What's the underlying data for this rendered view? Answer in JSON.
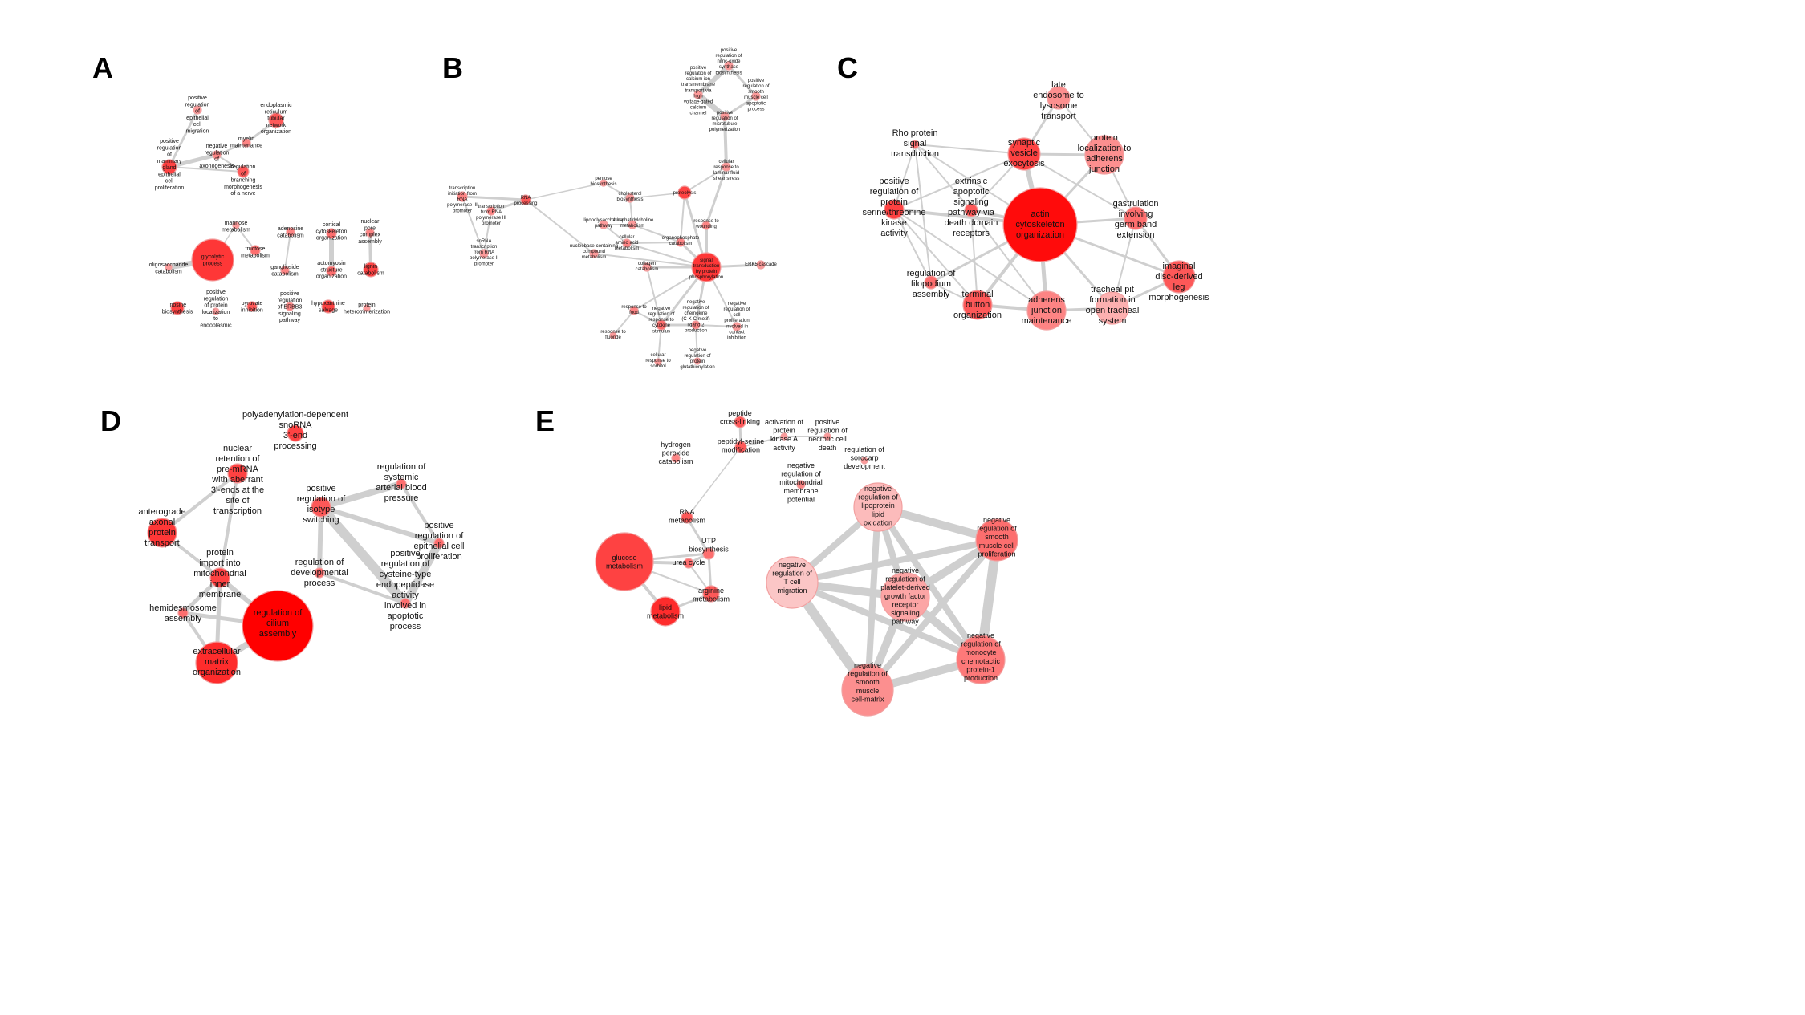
{
  "colors": {
    "background": "#ffffff",
    "edge": "#cfcfcf",
    "node_dark": "#ff0000",
    "node_light": "#fbdcdc"
  },
  "panels": [
    {
      "id": "A",
      "letter": "A",
      "nodes": [
        {
          "id": "a1",
          "label": "positive regulation of epithelial cell migration",
          "r": 5,
          "shade": 0.3
        },
        {
          "id": "a2",
          "label": "positive regulation of mammary gland epithelial cell proliferation",
          "r": 9,
          "shade": 0.7
        },
        {
          "id": "a3",
          "label": "negative regulation of axonogenesis",
          "r": 5,
          "shade": 0.4
        },
        {
          "id": "a4",
          "label": "endoplasmic reticulum tubular network organization",
          "r": 9,
          "shade": 0.6
        },
        {
          "id": "a5",
          "label": "myelin maintenance",
          "r": 5,
          "shade": 0.4
        },
        {
          "id": "a6",
          "label": "regulation of branching morphogenesis of a nerve",
          "r": 7,
          "shade": 0.6
        },
        {
          "id": "a7",
          "label": "glycolytic process",
          "r": 26,
          "shade": 0.75
        },
        {
          "id": "a8",
          "label": "oligosaccharide catabolism",
          "r": 4,
          "shade": 0.3
        },
        {
          "id": "a9",
          "label": "mannose metabolism",
          "r": 4,
          "shade": 0.3
        },
        {
          "id": "a10",
          "label": "fructose metabolism",
          "r": 6,
          "shade": 0.5
        },
        {
          "id": "a11",
          "label": "inosine biosynthesis",
          "r": 8,
          "shade": 0.7
        },
        {
          "id": "a12",
          "label": "positive regulation of protein localization to endoplasmic",
          "r": 4,
          "shade": 0.3
        },
        {
          "id": "a13",
          "label": "pyruvate inhibition",
          "r": 6,
          "shade": 0.6
        },
        {
          "id": "a14",
          "label": "adenosine catabolism",
          "r": 5,
          "shade": 0.4
        },
        {
          "id": "a15",
          "label": "ganglioside catabolism",
          "r": 5,
          "shade": 0.4
        },
        {
          "id": "a16",
          "label": "cortical cytoskeleton organization",
          "r": 6,
          "shade": 0.5
        },
        {
          "id": "a17",
          "label": "actomyosin structure organization",
          "r": 6,
          "shade": 0.5
        },
        {
          "id": "a18",
          "label": "positive regulation of ERBB3 signaling pathway",
          "r": 5,
          "shade": 0.4
        },
        {
          "id": "a19",
          "label": "hypoxanthine salvage",
          "r": 8,
          "shade": 0.7
        },
        {
          "id": "a20",
          "label": "nuclear pore complex assembly",
          "r": 5,
          "shade": 0.4
        },
        {
          "id": "a21",
          "label": "lignin catabolism",
          "r": 9,
          "shade": 0.7
        },
        {
          "id": "a22",
          "label": "protein heterotrimerization",
          "r": 4,
          "shade": 0.3
        }
      ]
    },
    {
      "id": "B",
      "letter": "B",
      "nodes": [
        {
          "id": "b1",
          "label": "positive regulation of nitric-oxide synthase biosynthesis",
          "r": 5,
          "shade": 0.3
        },
        {
          "id": "b2",
          "label": "positive regulation of calcium ion transmembrane transport via high voltage-gated calcium channel",
          "r": 5,
          "shade": 0.3
        },
        {
          "id": "b3",
          "label": "positive regulation of smooth muscle cell apoptotic process",
          "r": 5,
          "shade": 0.3
        },
        {
          "id": "b4",
          "label": "positive regulation of microtubule polymerization",
          "r": 5,
          "shade": 0.3
        },
        {
          "id": "b5",
          "label": "cellular response to laminar fluid shear stress",
          "r": 5,
          "shade": 0.3
        },
        {
          "id": "b6",
          "label": "transcription initiation from RNA polymerase III promoter",
          "r": 6,
          "shade": 0.4
        },
        {
          "id": "b7",
          "label": "RNA processing",
          "r": 6,
          "shade": 0.6
        },
        {
          "id": "b8",
          "label": "transcription from RNA polymerase III promoter",
          "r": 5,
          "shade": 0.4
        },
        {
          "id": "b9",
          "label": "snRNA transcription from RNA polymerase II promoter",
          "r": 5,
          "shade": 0.3
        },
        {
          "id": "b10",
          "label": "pentose biosynthesis",
          "r": 4,
          "shade": 0.3
        },
        {
          "id": "b11",
          "label": "cholesterol biosynthesis",
          "r": 5,
          "shade": 0.3
        },
        {
          "id": "b12",
          "label": "proteolysis",
          "r": 8,
          "shade": 0.7
        },
        {
          "id": "b13",
          "label": "lipopolysaccharide pathway",
          "r": 5,
          "shade": 0.3
        },
        {
          "id": "b14",
          "label": "phosphatidylcholine metabolism",
          "r": 5,
          "shade": 0.3
        },
        {
          "id": "b15",
          "label": "cellular amino acid metabolism",
          "r": 5,
          "shade": 0.4
        },
        {
          "id": "b16",
          "label": "nucleobase-containing compound metabolism",
          "r": 5,
          "shade": 0.3
        },
        {
          "id": "b17",
          "label": "organophosphate catabolism",
          "r": 5,
          "shade": 0.4
        },
        {
          "id": "b18",
          "label": "response to wounding",
          "r": 5,
          "shade": 0.4
        },
        {
          "id": "b19",
          "label": "collagen catabolism",
          "r": 5,
          "shade": 0.3
        },
        {
          "id": "b20",
          "label": "signal transduction by protein phosphorylation",
          "r": 18,
          "shade": 0.75
        },
        {
          "id": "b21",
          "label": "ERK5 cascade",
          "r": 5,
          "shade": 0.3
        },
        {
          "id": "b22",
          "label": "response to food",
          "r": 5,
          "shade": 0.4
        },
        {
          "id": "b23",
          "label": "negative regulation of response to cytokine stimulus",
          "r": 6,
          "shade": 0.5
        },
        {
          "id": "b24",
          "label": "negative regulation of chemokine (C-X-C motif) ligand 2 production",
          "r": 5,
          "shade": 0.4
        },
        {
          "id": "b25",
          "label": "negative regulation of cell proliferation involved in contact inhibition",
          "r": 5,
          "shade": 0.3
        },
        {
          "id": "b26",
          "label": "response to fluoride",
          "r": 4,
          "shade": 0.3
        },
        {
          "id": "b27",
          "label": "cellular response to sorbitol",
          "r": 4,
          "shade": 0.3
        },
        {
          "id": "b28",
          "label": "negative regulation of protein glutathionylation",
          "r": 4,
          "shade": 0.3
        }
      ]
    },
    {
      "id": "C",
      "letter": "C",
      "nodes": [
        {
          "id": "c1",
          "label": "late endosome to lysosome transport",
          "r": 14,
          "shade": 0.35
        },
        {
          "id": "c2",
          "label": "protein localization to adherens junction",
          "r": 24,
          "shade": 0.35
        },
        {
          "id": "c3",
          "label": "Rho protein signal transduction",
          "r": 5,
          "shade": 0.5
        },
        {
          "id": "c4",
          "label": "synaptic vesicle exocytosis",
          "r": 20,
          "shade": 0.7
        },
        {
          "id": "c5",
          "label": "positive regulation of protein serine/threonine kinase activity",
          "r": 12,
          "shade": 0.7
        },
        {
          "id": "c6",
          "label": "extrinsic apoptotic signaling pathway via death domain receptors",
          "r": 8,
          "shade": 0.6
        },
        {
          "id": "c7",
          "label": "actin cytoskeleton organization",
          "r": 46,
          "shade": 0.95
        },
        {
          "id": "c8",
          "label": "gastrulation involving germ band extension",
          "r": 14,
          "shade": 0.5
        },
        {
          "id": "c9",
          "label": "imaginal disc-derived leg morphogenesis",
          "r": 20,
          "shade": 0.6
        },
        {
          "id": "c10",
          "label": "regulation of filopodium assembly",
          "r": 8,
          "shade": 0.5
        },
        {
          "id": "c11",
          "label": "terminal button organization",
          "r": 18,
          "shade": 0.6
        },
        {
          "id": "c12",
          "label": "adherens junction maintenance",
          "r": 24,
          "shade": 0.4
        },
        {
          "id": "c13",
          "label": "tracheal pit formation in open tracheal system",
          "r": 20,
          "shade": 0.2
        }
      ]
    },
    {
      "id": "D",
      "letter": "D",
      "nodes": [
        {
          "id": "d1",
          "label": "polyadenylation-dependent snoRNA 3'-end processing",
          "r": 10,
          "shade": 0.7
        },
        {
          "id": "d2",
          "label": "nuclear retention of pre-mRNA with aberrant 3'-ends at the site of transcription",
          "r": 12,
          "shade": 0.7
        },
        {
          "id": "d3",
          "label": "anterograde axonal protein transport",
          "r": 18,
          "shade": 0.75
        },
        {
          "id": "d4",
          "label": "protein import into mitochondrial inner membrane",
          "r": 12,
          "shade": 0.7
        },
        {
          "id": "d5",
          "label": "hemidesmosome assembly",
          "r": 6,
          "shade": 0.5
        },
        {
          "id": "d6",
          "label": "regulation of cilium assembly",
          "r": 44,
          "shade": 1.0
        },
        {
          "id": "d7",
          "label": "extracellular matrix organization",
          "r": 26,
          "shade": 0.8
        },
        {
          "id": "d8",
          "label": "positive regulation of isotype switching",
          "r": 12,
          "shade": 0.6
        },
        {
          "id": "d9",
          "label": "regulation of systemic arterial blood pressure",
          "r": 6,
          "shade": 0.5
        },
        {
          "id": "d10",
          "label": "positive regulation of epithelial cell proliferation",
          "r": 6,
          "shade": 0.5
        },
        {
          "id": "d11",
          "label": "regulation of developmental process",
          "r": 6,
          "shade": 0.5
        },
        {
          "id": "d12",
          "label": "positive regulation of cysteine-type endopeptidase activity involved in apoptotic process",
          "r": 6,
          "shade": 0.5
        }
      ]
    },
    {
      "id": "E",
      "letter": "E",
      "nodes": [
        {
          "id": "e1",
          "label": "peptide cross-linking",
          "r": 7,
          "shade": 0.6
        },
        {
          "id": "e2",
          "label": "peptidyl-serine modification",
          "r": 7,
          "shade": 0.6
        },
        {
          "id": "e3",
          "label": "activation of protein kinase A activity",
          "r": 4,
          "shade": 0.3
        },
        {
          "id": "e4",
          "label": "positive regulation of necrotic cell death",
          "r": 4,
          "shade": 0.3
        },
        {
          "id": "e5",
          "label": "regulation of sorocarp development",
          "r": 4,
          "shade": 0.3
        },
        {
          "id": "e6",
          "label": "hydrogen peroxide catabolism",
          "r": 5,
          "shade": 0.4
        },
        {
          "id": "e7",
          "label": "negative regulation of mitochondrial membrane potential",
          "r": 5,
          "shade": 0.4
        },
        {
          "id": "e8",
          "label": "RNA metabolism",
          "r": 7,
          "shade": 0.6
        },
        {
          "id": "e9",
          "label": "negative regulation of lipoprotein lipid oxidation",
          "r": 30,
          "shade": 0.15
        },
        {
          "id": "e10",
          "label": "negative regulation of smooth muscle cell proliferation",
          "r": 26,
          "shade": 0.5
        },
        {
          "id": "e11",
          "label": "UTP biosynthesis",
          "r": 7,
          "shade": 0.5
        },
        {
          "id": "e12",
          "label": "glucose metabolism",
          "r": 36,
          "shade": 0.7
        },
        {
          "id": "e13",
          "label": "urea cycle",
          "r": 6,
          "shade": 0.5
        },
        {
          "id": "e14",
          "label": "negative regulation of T cell migration",
          "r": 32,
          "shade": 0.1
        },
        {
          "id": "e15",
          "label": "negative regulation of platelet-derived growth factor receptor signaling pathway",
          "r": 30,
          "shade": 0.25
        },
        {
          "id": "e16",
          "label": "arginine metabolism",
          "r": 10,
          "shade": 0.6
        },
        {
          "id": "e17",
          "label": "lipid metabolism",
          "r": 18,
          "shade": 0.8
        },
        {
          "id": "e18",
          "label": "negative regulation of monocyte chemotactic protein-1 production",
          "r": 30,
          "shade": 0.45
        },
        {
          "id": "e19",
          "label": "negative regulation of smooth muscle cell-matrix",
          "r": 32,
          "shade": 0.35
        }
      ]
    }
  ]
}
